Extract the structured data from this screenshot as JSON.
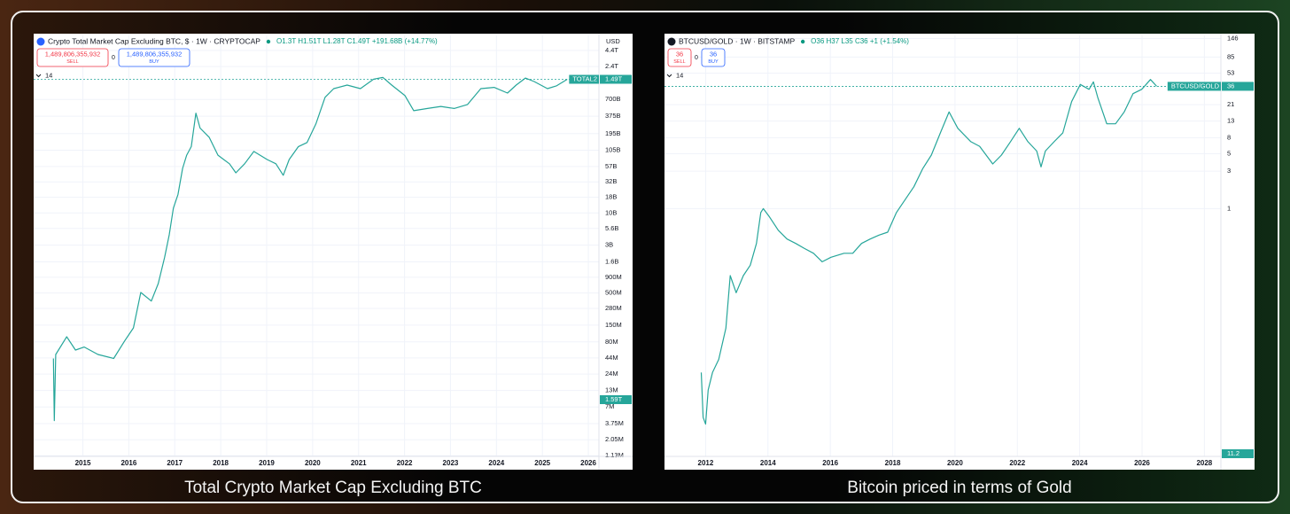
{
  "chart_data": [
    {
      "type": "line",
      "title": "Crypto Total Market Cap Excluding BTC, $ · 1W · CRYPTOCAP",
      "ohlc": "O1.3T H1.51T L1.28T C1.49T +191.68B (+14.77%)",
      "currency": "USD",
      "sell_price": "1,489,806,355,932",
      "sell_label": "SELL",
      "spread": 0,
      "buy_price": "1,489,806,355,932",
      "buy_label": "BUY",
      "collapsed_count": 14,
      "last_price": {
        "name": "TOTAL2",
        "value": 1490000000000,
        "label": "1.49T"
      },
      "volume_label": "1.59T",
      "caption": "Total Crypto Market Cap Excluding BTC",
      "icon_color": "#2962ff",
      "color": "#26a69a",
      "log_scale": true,
      "grid": true,
      "xlim": [
        2013.93,
        2026.23
      ],
      "xticks": [
        2015,
        2016,
        2017,
        2018,
        2019,
        2020,
        2021,
        2022,
        2023,
        2024,
        2025,
        2026
      ],
      "ylim": [
        1100000,
        7700000000000
      ],
      "yticks": [
        {
          "value": 4400000000000,
          "label": "4.4T"
        },
        {
          "value": 2400000000000,
          "label": "2.4T"
        },
        {
          "value": 700000000000,
          "label": "700B"
        },
        {
          "value": 375000000000,
          "label": "375B"
        },
        {
          "value": 195000000000,
          "label": "195B"
        },
        {
          "value": 105000000000,
          "label": "105B"
        },
        {
          "value": 57000000000,
          "label": "57B"
        },
        {
          "value": 32000000000,
          "label": "32B"
        },
        {
          "value": 18000000000,
          "label": "18B"
        },
        {
          "value": 10000000000,
          "label": "10B"
        },
        {
          "value": 5600000000,
          "label": "5.6B"
        },
        {
          "value": 3000000000,
          "label": "3B"
        },
        {
          "value": 1600000000,
          "label": "1.6B"
        },
        {
          "value": 900000000,
          "label": "900M"
        },
        {
          "value": 500000000,
          "label": "500M"
        },
        {
          "value": 280000000,
          "label": "280M"
        },
        {
          "value": 150000000,
          "label": "150M"
        },
        {
          "value": 80000000,
          "label": "80M"
        },
        {
          "value": 44000000,
          "label": "44M"
        },
        {
          "value": 24000000,
          "label": "24M"
        },
        {
          "value": 13000000,
          "label": "13M"
        },
        {
          "value": 7000000,
          "label": "7M"
        },
        {
          "value": 3750000,
          "label": "3.75M"
        },
        {
          "value": 2050000,
          "label": "2.05M"
        },
        {
          "value": 1130000,
          "label": "1.13M"
        }
      ],
      "x": [
        2014.36,
        2014.38,
        2014.41,
        2014.65,
        2014.84,
        2015.03,
        2015.33,
        2015.67,
        2015.91,
        2016.1,
        2016.26,
        2016.49,
        2016.64,
        2016.78,
        2016.88,
        2016.97,
        2017.07,
        2017.17,
        2017.26,
        2017.36,
        2017.46,
        2017.55,
        2017.75,
        2017.94,
        2018.19,
        2018.33,
        2018.52,
        2018.72,
        2019.01,
        2019.2,
        2019.36,
        2019.49,
        2019.69,
        2019.88,
        2020.07,
        2020.27,
        2020.46,
        2020.75,
        2021.04,
        2021.33,
        2021.53,
        2021.72,
        2022.01,
        2022.2,
        2022.5,
        2022.79,
        2023.08,
        2023.37,
        2023.66,
        2023.95,
        2024.24,
        2024.43,
        2024.63,
        2024.82,
        2025.11,
        2025.31,
        2025.54
      ],
      "values": [
        43000000,
        4200000,
        50000000,
        97000000,
        59000000,
        66000000,
        50000000,
        43000000,
        83000000,
        135000000,
        510000000,
        370000000,
        710000000,
        1900000000,
        4400000000,
        12000000000,
        20000000000,
        53000000000,
        87000000000,
        120000000000,
        420000000000,
        240000000000,
        170000000000,
        87000000000,
        63000000000,
        45000000000,
        63000000000,
        100000000000,
        74000000000,
        63000000000,
        41000000000,
        74000000000,
        120000000000,
        140000000000,
        280000000000,
        760000000000,
        1050000000000,
        1200000000000,
        1050000000000,
        1500000000000,
        1600000000000,
        1200000000000,
        810000000000,
        460000000000,
        500000000000,
        540000000000,
        500000000000,
        580000000000,
        1050000000000,
        1100000000000,
        890000000000,
        1200000000000,
        1560000000000,
        1370000000000,
        1050000000000,
        1170000000000,
        1490000000000
      ]
    },
    {
      "type": "line",
      "title": "BTCUSD/GOLD · 1W · BITSTAMP",
      "ohlc": "O36 H37 L35 C36 +1 (+1.54%)",
      "sell_price": "36",
      "sell_label": "SELL",
      "spread": 0,
      "buy_price": "36",
      "buy_label": "BUY",
      "collapsed_count": 14,
      "last_price": {
        "name": "BTCUSD/GOLD",
        "value": 36
      },
      "volume_label": "11.2",
      "caption": "Bitcoin priced in terms of Gold",
      "icon_color": "#131722",
      "color": "#26a69a",
      "log_scale": true,
      "grid": true,
      "xlim": [
        2010.68,
        2028.53
      ],
      "xticks": [
        2012,
        2014,
        2016,
        2018,
        2020,
        2022,
        2024,
        2026,
        2028
      ],
      "ylim": [
        0.0007,
        160
      ],
      "yticks": [
        146,
        85,
        53,
        21,
        13,
        8,
        5,
        3,
        1
      ],
      "x": [
        2011.86,
        2011.92,
        2012.0,
        2012.08,
        2012.22,
        2012.42,
        2012.65,
        2012.79,
        2012.98,
        2013.21,
        2013.43,
        2013.63,
        2013.77,
        2013.85,
        2014.05,
        2014.33,
        2014.61,
        2014.89,
        2015.17,
        2015.46,
        2015.74,
        2016.02,
        2016.44,
        2016.72,
        2017.0,
        2017.28,
        2017.56,
        2017.84,
        2018.12,
        2018.4,
        2018.68,
        2018.96,
        2019.24,
        2019.53,
        2019.81,
        2020.09,
        2020.51,
        2020.79,
        2021.21,
        2021.49,
        2021.78,
        2022.06,
        2022.34,
        2022.62,
        2022.76,
        2022.9,
        2023.18,
        2023.46,
        2023.74,
        2024.02,
        2024.3,
        2024.44,
        2024.58,
        2024.87,
        2025.15,
        2025.43,
        2025.71,
        2025.99,
        2026.13,
        2026.27,
        2026.47
      ],
      "values": [
        0.0082,
        0.0022,
        0.0018,
        0.0049,
        0.0082,
        0.012,
        0.03,
        0.14,
        0.085,
        0.14,
        0.19,
        0.36,
        0.89,
        1.0,
        0.78,
        0.53,
        0.41,
        0.36,
        0.31,
        0.27,
        0.21,
        0.24,
        0.27,
        0.27,
        0.36,
        0.41,
        0.46,
        0.5,
        0.89,
        1.3,
        1.9,
        3.2,
        4.8,
        9.2,
        17,
        10.5,
        7.1,
        6.2,
        3.7,
        4.8,
        7.1,
        10.5,
        7.1,
        5.4,
        3.4,
        5.4,
        7.1,
        9.2,
        23,
        38,
        33,
        41,
        26,
        12,
        12,
        17,
        29,
        33,
        38,
        44,
        36
      ]
    }
  ]
}
